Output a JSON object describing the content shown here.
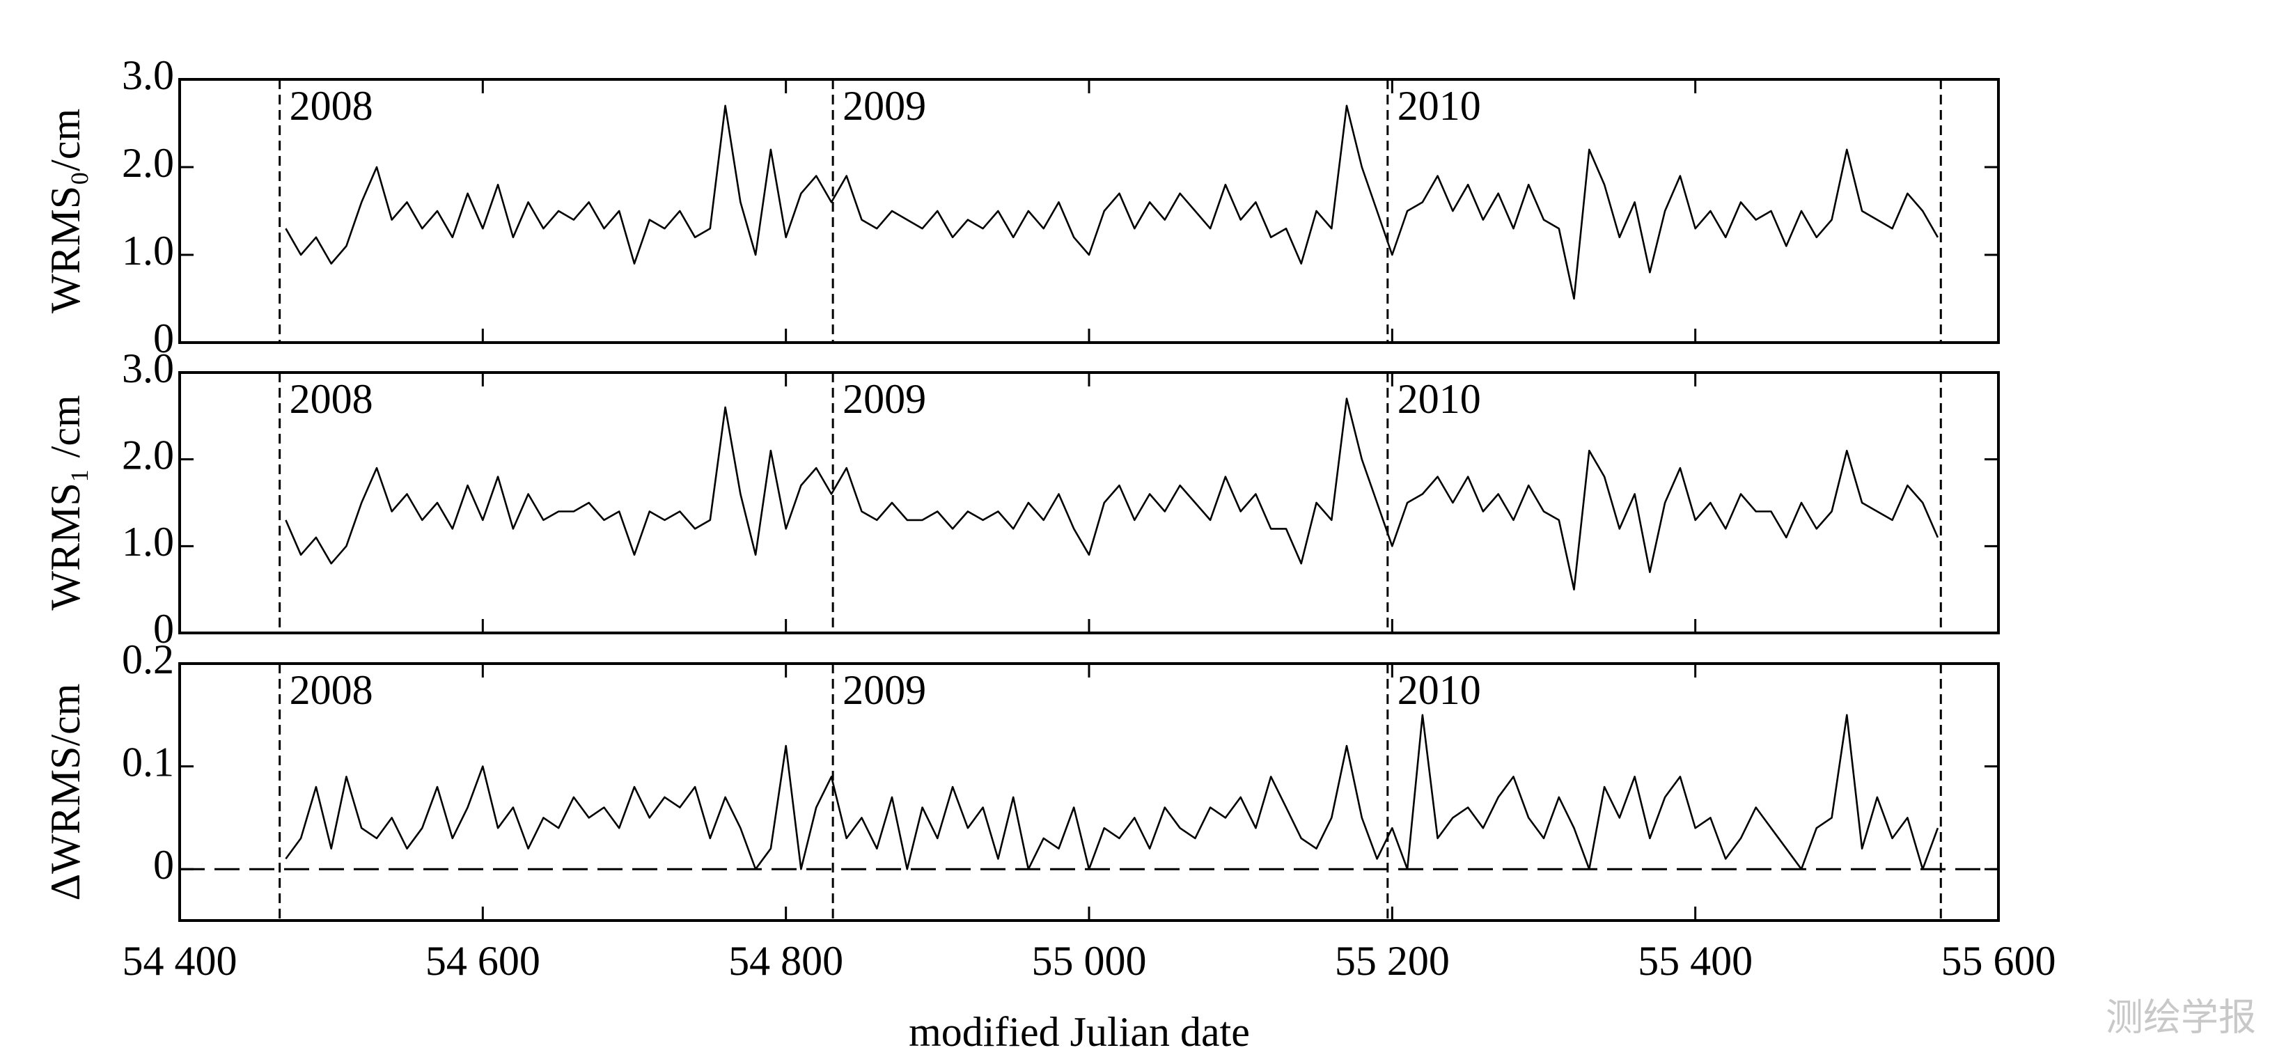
{
  "x_axis": {
    "label": "modified Julian date",
    "xlim": [
      54400,
      55600
    ],
    "xticks": [
      {
        "value": 54400,
        "label": "54 400"
      },
      {
        "value": 54600,
        "label": "54 600"
      },
      {
        "value": 54800,
        "label": "54 800"
      },
      {
        "value": 55000,
        "label": "55 000"
      },
      {
        "value": 55200,
        "label": "55 200"
      },
      {
        "value": 55400,
        "label": "55 400"
      },
      {
        "value": 55600,
        "label": "55 600"
      }
    ]
  },
  "watermark": "测绘学报",
  "chart_data": [
    {
      "type": "line",
      "ylabel": "WRMS₀/cm",
      "color": "#000000",
      "ylim": [
        0,
        3
      ],
      "yticks": [
        0,
        {
          "value": 1,
          "label": "1.0"
        },
        {
          "value": 2,
          "label": "2.0"
        },
        {
          "value": 3,
          "label": "3.0"
        }
      ],
      "vlines": [
        54466,
        54831,
        55197,
        55562
      ],
      "annotations": [
        {
          "x": 54466,
          "text": "2008"
        },
        {
          "x": 54831,
          "text": "2009"
        },
        {
          "x": 55197,
          "text": "2010"
        }
      ],
      "x": [
        54470,
        54480,
        54490,
        54500,
        54510,
        54520,
        54530,
        54540,
        54550,
        54560,
        54570,
        54580,
        54590,
        54600,
        54610,
        54620,
        54630,
        54640,
        54650,
        54660,
        54670,
        54680,
        54690,
        54700,
        54710,
        54720,
        54730,
        54740,
        54750,
        54760,
        54770,
        54780,
        54790,
        54800,
        54810,
        54820,
        54830,
        54840,
        54850,
        54860,
        54870,
        54880,
        54890,
        54900,
        54910,
        54920,
        54930,
        54940,
        54950,
        54960,
        54970,
        54980,
        54990,
        55000,
        55010,
        55020,
        55030,
        55040,
        55050,
        55060,
        55070,
        55080,
        55090,
        55100,
        55110,
        55120,
        55130,
        55140,
        55150,
        55160,
        55170,
        55180,
        55190,
        55200,
        55210,
        55220,
        55230,
        55240,
        55250,
        55260,
        55270,
        55280,
        55290,
        55300,
        55310,
        55320,
        55330,
        55340,
        55350,
        55360,
        55370,
        55380,
        55390,
        55400,
        55410,
        55420,
        55430,
        55440,
        55450,
        55460,
        55470,
        55480,
        55490,
        55500,
        55510,
        55520,
        55530,
        55540,
        55550,
        55560
      ],
      "values": [
        1.3,
        1.0,
        1.2,
        0.9,
        1.1,
        1.6,
        2.0,
        1.4,
        1.6,
        1.3,
        1.5,
        1.2,
        1.7,
        1.3,
        1.8,
        1.2,
        1.6,
        1.3,
        1.5,
        1.4,
        1.6,
        1.3,
        1.5,
        0.9,
        1.4,
        1.3,
        1.5,
        1.2,
        1.3,
        2.7,
        1.6,
        1.0,
        2.2,
        1.2,
        1.7,
        1.9,
        1.6,
        1.9,
        1.4,
        1.3,
        1.5,
        1.4,
        1.3,
        1.5,
        1.2,
        1.4,
        1.3,
        1.5,
        1.2,
        1.5,
        1.3,
        1.6,
        1.2,
        1.0,
        1.5,
        1.7,
        1.3,
        1.6,
        1.4,
        1.7,
        1.5,
        1.3,
        1.8,
        1.4,
        1.6,
        1.2,
        1.3,
        0.9,
        1.5,
        1.3,
        2.7,
        2.0,
        1.5,
        1.0,
        1.5,
        1.6,
        1.9,
        1.5,
        1.8,
        1.4,
        1.7,
        1.3,
        1.8,
        1.4,
        1.3,
        0.5,
        2.2,
        1.8,
        1.2,
        1.6,
        0.8,
        1.5,
        1.9,
        1.3,
        1.5,
        1.2,
        1.6,
        1.4,
        1.5,
        1.1,
        1.5,
        1.2,
        1.4,
        2.2,
        1.5,
        1.4,
        1.3,
        1.7,
        1.5,
        1.2
      ]
    },
    {
      "type": "line",
      "ylabel": "WRMS₁ /cm",
      "color": "#000000",
      "ylim": [
        0,
        3
      ],
      "yticks": [
        0,
        {
          "value": 1,
          "label": "1.0"
        },
        {
          "value": 2,
          "label": "2.0"
        },
        {
          "value": 3,
          "label": "3.0"
        }
      ],
      "vlines": [
        54466,
        54831,
        55197,
        55562
      ],
      "annotations": [
        {
          "x": 54466,
          "text": "2008"
        },
        {
          "x": 54831,
          "text": "2009"
        },
        {
          "x": 55197,
          "text": "2010"
        }
      ],
      "x": [
        54470,
        54480,
        54490,
        54500,
        54510,
        54520,
        54530,
        54540,
        54550,
        54560,
        54570,
        54580,
        54590,
        54600,
        54610,
        54620,
        54630,
        54640,
        54650,
        54660,
        54670,
        54680,
        54690,
        54700,
        54710,
        54720,
        54730,
        54740,
        54750,
        54760,
        54770,
        54780,
        54790,
        54800,
        54810,
        54820,
        54830,
        54840,
        54850,
        54860,
        54870,
        54880,
        54890,
        54900,
        54910,
        54920,
        54930,
        54940,
        54950,
        54960,
        54970,
        54980,
        54990,
        55000,
        55010,
        55020,
        55030,
        55040,
        55050,
        55060,
        55070,
        55080,
        55090,
        55100,
        55110,
        55120,
        55130,
        55140,
        55150,
        55160,
        55170,
        55180,
        55190,
        55200,
        55210,
        55220,
        55230,
        55240,
        55250,
        55260,
        55270,
        55280,
        55290,
        55300,
        55310,
        55320,
        55330,
        55340,
        55350,
        55360,
        55370,
        55380,
        55390,
        55400,
        55410,
        55420,
        55430,
        55440,
        55450,
        55460,
        55470,
        55480,
        55490,
        55500,
        55510,
        55520,
        55530,
        55540,
        55550,
        55560
      ],
      "values": [
        1.3,
        0.9,
        1.1,
        0.8,
        1.0,
        1.5,
        1.9,
        1.4,
        1.6,
        1.3,
        1.5,
        1.2,
        1.7,
        1.3,
        1.8,
        1.2,
        1.6,
        1.3,
        1.4,
        1.4,
        1.5,
        1.3,
        1.4,
        0.9,
        1.4,
        1.3,
        1.4,
        1.2,
        1.3,
        2.6,
        1.6,
        0.9,
        2.1,
        1.2,
        1.7,
        1.9,
        1.6,
        1.9,
        1.4,
        1.3,
        1.5,
        1.3,
        1.3,
        1.4,
        1.2,
        1.4,
        1.3,
        1.4,
        1.2,
        1.5,
        1.3,
        1.6,
        1.2,
        0.9,
        1.5,
        1.7,
        1.3,
        1.6,
        1.4,
        1.7,
        1.5,
        1.3,
        1.8,
        1.4,
        1.6,
        1.2,
        1.2,
        0.8,
        1.5,
        1.3,
        2.7,
        2.0,
        1.5,
        1.0,
        1.5,
        1.6,
        1.8,
        1.5,
        1.8,
        1.4,
        1.6,
        1.3,
        1.7,
        1.4,
        1.3,
        0.5,
        2.1,
        1.8,
        1.2,
        1.6,
        0.7,
        1.5,
        1.9,
        1.3,
        1.5,
        1.2,
        1.6,
        1.4,
        1.4,
        1.1,
        1.5,
        1.2,
        1.4,
        2.1,
        1.5,
        1.4,
        1.3,
        1.7,
        1.5,
        1.1
      ]
    },
    {
      "type": "line",
      "ylabel": "ΔWRMS/cm",
      "color": "#000000",
      "ylim": [
        -0.05,
        0.2
      ],
      "yticks": [
        0,
        0.1,
        0.2
      ],
      "hline": 0,
      "vlines": [
        54466,
        54831,
        55197,
        55562
      ],
      "annotations": [
        {
          "x": 54466,
          "text": "2008"
        },
        {
          "x": 54831,
          "text": "2009"
        },
        {
          "x": 55197,
          "text": "2010"
        }
      ],
      "x": [
        54470,
        54480,
        54490,
        54500,
        54510,
        54520,
        54530,
        54540,
        54550,
        54560,
        54570,
        54580,
        54590,
        54600,
        54610,
        54620,
        54630,
        54640,
        54650,
        54660,
        54670,
        54680,
        54690,
        54700,
        54710,
        54720,
        54730,
        54740,
        54750,
        54760,
        54770,
        54780,
        54790,
        54800,
        54810,
        54820,
        54830,
        54840,
        54850,
        54860,
        54870,
        54880,
        54890,
        54900,
        54910,
        54920,
        54930,
        54940,
        54950,
        54960,
        54970,
        54980,
        54990,
        55000,
        55010,
        55020,
        55030,
        55040,
        55050,
        55060,
        55070,
        55080,
        55090,
        55100,
        55110,
        55120,
        55130,
        55140,
        55150,
        55160,
        55170,
        55180,
        55190,
        55200,
        55210,
        55220,
        55230,
        55240,
        55250,
        55260,
        55270,
        55280,
        55290,
        55300,
        55310,
        55320,
        55330,
        55340,
        55350,
        55360,
        55370,
        55380,
        55390,
        55400,
        55410,
        55420,
        55430,
        55440,
        55450,
        55460,
        55470,
        55480,
        55490,
        55500,
        55510,
        55520,
        55530,
        55540,
        55550,
        55560
      ],
      "values": [
        0.01,
        0.03,
        0.08,
        0.02,
        0.09,
        0.04,
        0.03,
        0.05,
        0.02,
        0.04,
        0.08,
        0.03,
        0.06,
        0.1,
        0.04,
        0.06,
        0.02,
        0.05,
        0.04,
        0.07,
        0.05,
        0.06,
        0.04,
        0.08,
        0.05,
        0.07,
        0.06,
        0.08,
        0.03,
        0.07,
        0.04,
        0.0,
        0.02,
        0.12,
        0.0,
        0.06,
        0.09,
        0.03,
        0.05,
        0.02,
        0.07,
        0.0,
        0.06,
        0.03,
        0.08,
        0.04,
        0.06,
        0.01,
        0.07,
        0.0,
        0.03,
        0.02,
        0.06,
        0.0,
        0.04,
        0.03,
        0.05,
        0.02,
        0.06,
        0.04,
        0.03,
        0.06,
        0.05,
        0.07,
        0.04,
        0.09,
        0.06,
        0.03,
        0.02,
        0.05,
        0.12,
        0.05,
        0.01,
        0.04,
        0.0,
        0.15,
        0.03,
        0.05,
        0.06,
        0.04,
        0.07,
        0.09,
        0.05,
        0.03,
        0.07,
        0.04,
        0.0,
        0.08,
        0.05,
        0.09,
        0.03,
        0.07,
        0.09,
        0.04,
        0.05,
        0.01,
        0.03,
        0.06,
        0.04,
        0.02,
        0.0,
        0.04,
        0.05,
        0.15,
        0.02,
        0.07,
        0.03,
        0.05,
        0.0,
        0.04
      ]
    }
  ]
}
